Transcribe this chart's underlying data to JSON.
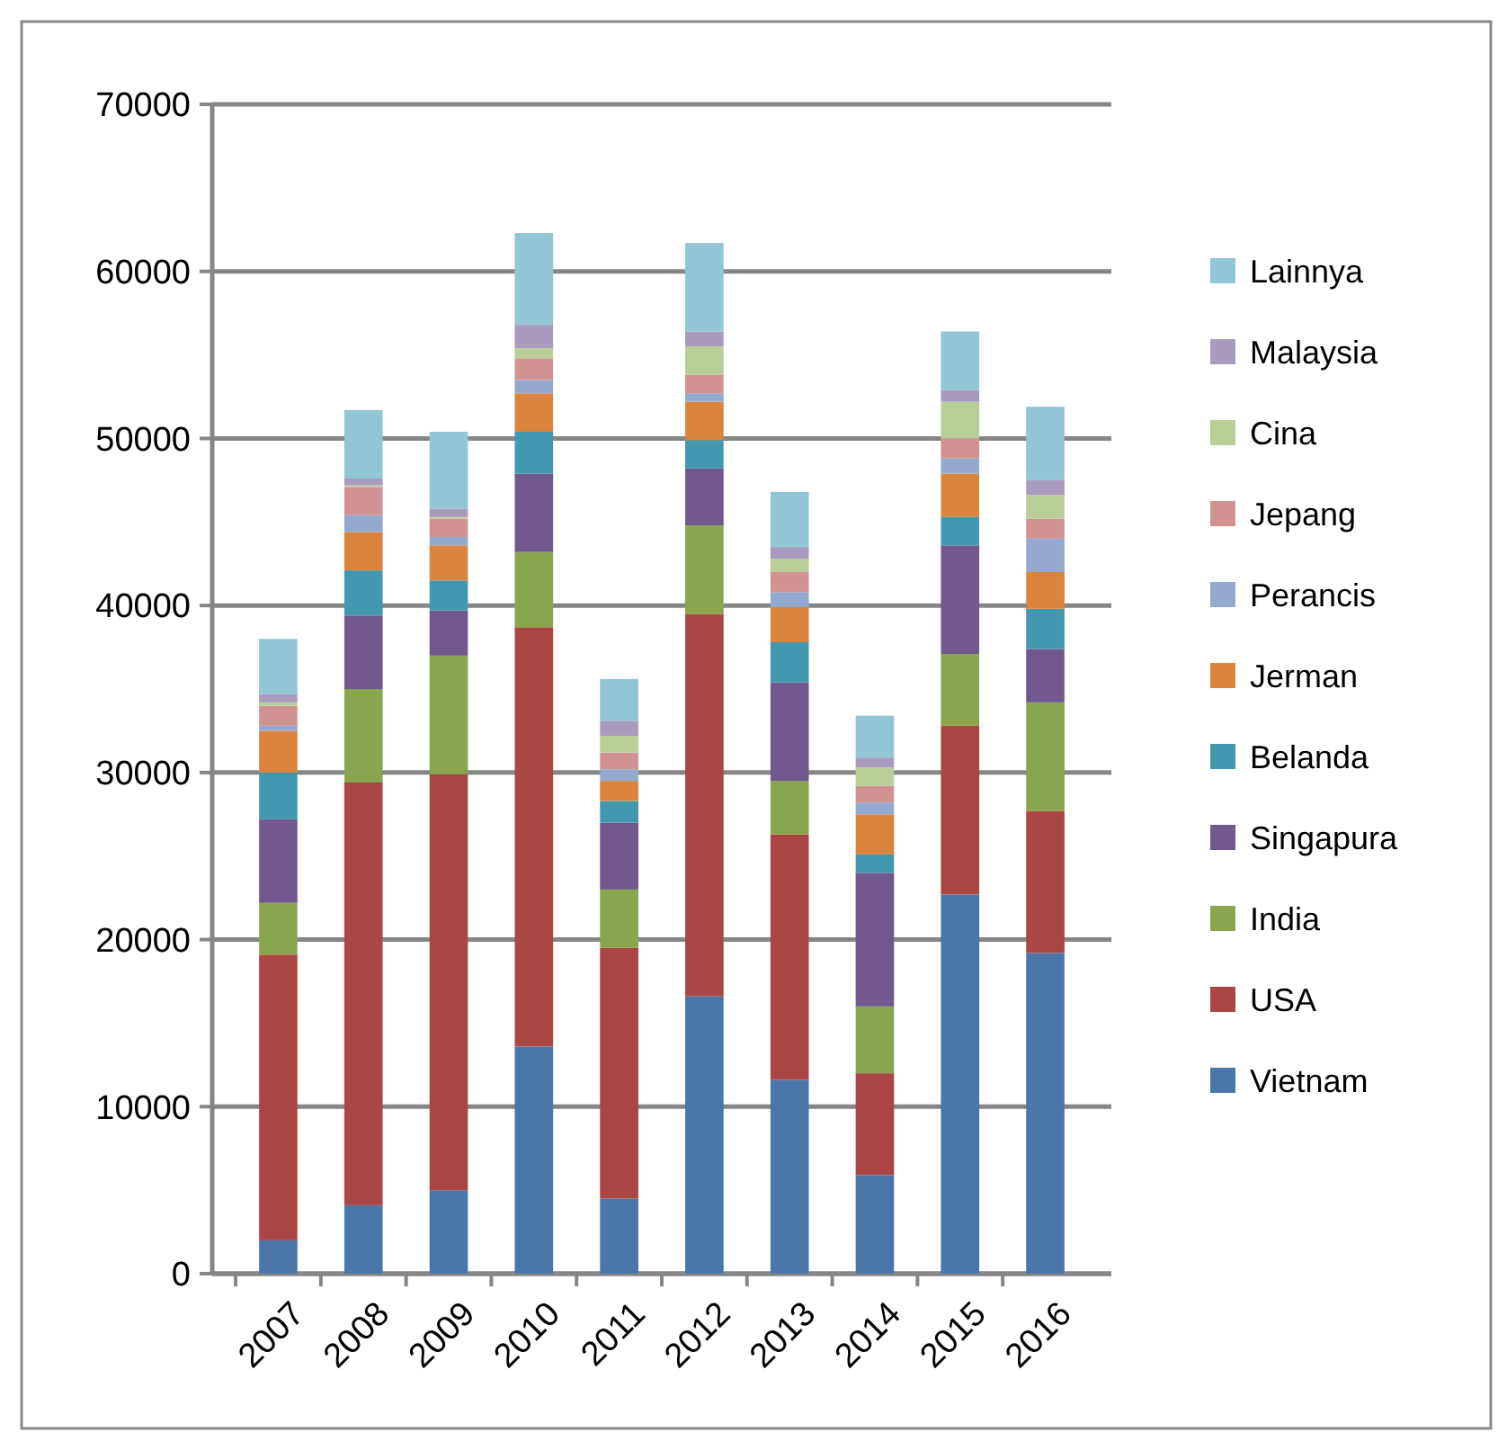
{
  "chart_data": {
    "type": "bar",
    "stacked": true,
    "categories": [
      "2007",
      "2008",
      "2009",
      "2010",
      "2011",
      "2012",
      "2013",
      "2014",
      "2015",
      "2016"
    ],
    "series": [
      {
        "name": "Vietnam",
        "color": "#4a76a8",
        "values": [
          2000,
          4100,
          5000,
          13600,
          4500,
          16600,
          11600,
          5900,
          22700,
          19200
        ]
      },
      {
        "name": "USA",
        "color": "#aa4643",
        "values": [
          17100,
          25300,
          24900,
          25100,
          15000,
          22900,
          14700,
          6100,
          10100,
          8500
        ]
      },
      {
        "name": "India",
        "color": "#89a54e",
        "values": [
          3100,
          5600,
          7100,
          4500,
          3500,
          5300,
          3200,
          4000,
          4300,
          6500
        ]
      },
      {
        "name": "Singapura",
        "color": "#71588f",
        "values": [
          5000,
          4400,
          2700,
          4700,
          4000,
          3400,
          5900,
          8000,
          6500,
          3200
        ]
      },
      {
        "name": "Belanda",
        "color": "#4198af",
        "values": [
          2800,
          2700,
          1800,
          2500,
          1300,
          1700,
          2400,
          1100,
          1700,
          2400
        ]
      },
      {
        "name": "Jerman",
        "color": "#db843d",
        "values": [
          2500,
          2300,
          2100,
          2300,
          1200,
          2300,
          2100,
          2400,
          2600,
          2200
        ]
      },
      {
        "name": "Perancis",
        "color": "#93a9cf",
        "values": [
          300,
          1000,
          500,
          800,
          700,
          500,
          900,
          700,
          900,
          2000
        ]
      },
      {
        "name": "Jepang",
        "color": "#d19392",
        "values": [
          1200,
          1700,
          1100,
          1300,
          1000,
          1100,
          1200,
          1000,
          1200,
          1200
        ]
      },
      {
        "name": "Cina",
        "color": "#b9cd96",
        "values": [
          200,
          100,
          100,
          600,
          1000,
          1700,
          800,
          1100,
          2200,
          1400
        ]
      },
      {
        "name": "Malaysia",
        "color": "#a99bbd",
        "values": [
          500,
          400,
          500,
          1400,
          900,
          900,
          700,
          600,
          700,
          900
        ]
      },
      {
        "name": "Lainnya",
        "color": "#92c5d6",
        "values": [
          3300,
          4100,
          4600,
          5500,
          2500,
          5300,
          3300,
          2500,
          3500,
          4400
        ]
      }
    ],
    "ylim": [
      0,
      70000
    ],
    "yticks": [
      0,
      10000,
      20000,
      30000,
      40000,
      50000,
      60000,
      70000
    ],
    "grid": "y",
    "legend": "right"
  }
}
